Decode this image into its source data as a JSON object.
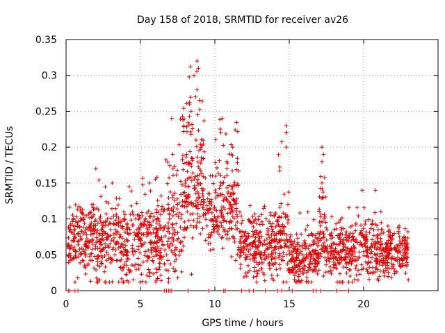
{
  "chart_data": {
    "type": "scatter",
    "title": "Day 158 of 2018, SRMTID for receiver av26",
    "xlabel": "GPS time / hours",
    "ylabel": "SRMTID / TECUs",
    "xlim": [
      0,
      25
    ],
    "ylim": [
      0,
      0.35
    ],
    "xticks": [
      {
        "value": 0,
        "label": "0"
      },
      {
        "value": 5,
        "label": "5"
      },
      {
        "value": 10,
        "label": "10"
      },
      {
        "value": 15,
        "label": "15"
      },
      {
        "value": 20,
        "label": "20"
      }
    ],
    "yticks": [
      {
        "value": 0,
        "label": "0"
      },
      {
        "value": 0.05,
        "label": "0.05"
      },
      {
        "value": 0.1,
        "label": "0.1"
      },
      {
        "value": 0.15,
        "label": "0.15"
      },
      {
        "value": 0.2,
        "label": "0.2"
      },
      {
        "value": 0.25,
        "label": "0.25"
      },
      {
        "value": 0.3,
        "label": "0.3"
      },
      {
        "value": 0.35,
        "label": "0.35"
      }
    ],
    "grid": true,
    "marker": "+",
    "color": "#e00000",
    "series": [
      {
        "name": "SRMTID av26",
        "segments": [
          {
            "x_start": 0.1,
            "x_end": 2.0,
            "base": 0.07,
            "spread": 0.03,
            "peak": 0.12,
            "count": 180
          },
          {
            "x_start": 2.0,
            "x_end": 4.5,
            "base": 0.065,
            "spread": 0.035,
            "peak": 0.17,
            "count": 230
          },
          {
            "x_start": 4.5,
            "x_end": 6.7,
            "base": 0.07,
            "spread": 0.035,
            "peak": 0.16,
            "count": 210
          },
          {
            "x_start": 6.7,
            "x_end": 7.8,
            "base": 0.09,
            "spread": 0.05,
            "peak": 0.24,
            "count": 100
          },
          {
            "x_start": 7.8,
            "x_end": 9.3,
            "base": 0.15,
            "spread": 0.06,
            "peak": 0.32,
            "count": 170
          },
          {
            "x_start": 9.3,
            "x_end": 10.0,
            "base": 0.11,
            "spread": 0.03,
            "peak": 0.16,
            "count": 50
          },
          {
            "x_start": 10.0,
            "x_end": 11.6,
            "base": 0.12,
            "spread": 0.04,
            "peak": 0.24,
            "count": 150
          },
          {
            "x_start": 11.6,
            "x_end": 14.0,
            "base": 0.06,
            "spread": 0.025,
            "peak": 0.12,
            "count": 220
          },
          {
            "x_start": 14.0,
            "x_end": 15.0,
            "base": 0.07,
            "spread": 0.035,
            "peak": 0.23,
            "count": 100
          },
          {
            "x_start": 15.0,
            "x_end": 17.0,
            "base": 0.045,
            "spread": 0.02,
            "peak": 0.11,
            "count": 200
          },
          {
            "x_start": 17.0,
            "x_end": 17.5,
            "base": 0.09,
            "spread": 0.04,
            "peak": 0.2,
            "count": 50
          },
          {
            "x_start": 17.5,
            "x_end": 20.0,
            "base": 0.055,
            "spread": 0.025,
            "peak": 0.12,
            "count": 220
          },
          {
            "x_start": 20.0,
            "x_end": 21.2,
            "base": 0.06,
            "spread": 0.03,
            "peak": 0.14,
            "count": 110
          },
          {
            "x_start": 21.2,
            "x_end": 23.0,
            "base": 0.055,
            "spread": 0.02,
            "peak": 0.09,
            "count": 180
          }
        ],
        "highlights": [
          {
            "x": 8.8,
            "y": 0.32
          },
          {
            "x": 8.9,
            "y": 0.31
          },
          {
            "x": 8.6,
            "y": 0.3
          },
          {
            "x": 8.8,
            "y": 0.28
          },
          {
            "x": 8.7,
            "y": 0.27
          },
          {
            "x": 8.3,
            "y": 0.26
          },
          {
            "x": 8.4,
            "y": 0.25
          },
          {
            "x": 7.1,
            "y": 0.24
          },
          {
            "x": 10.5,
            "y": 0.24
          },
          {
            "x": 10.4,
            "y": 0.22
          },
          {
            "x": 14.8,
            "y": 0.23
          },
          {
            "x": 14.8,
            "y": 0.22
          },
          {
            "x": 14.8,
            "y": 0.2
          },
          {
            "x": 17.2,
            "y": 0.2
          },
          {
            "x": 17.3,
            "y": 0.19
          },
          {
            "x": 17.2,
            "y": 0.18
          },
          {
            "x": 2.0,
            "y": 0.17
          },
          {
            "x": 11.2,
            "y": 0.2
          },
          {
            "x": 17.2,
            "y": 0.15
          },
          {
            "x": 20.8,
            "y": 0.14
          },
          {
            "x": 19.9,
            "y": 0.14
          },
          {
            "x": 5.6,
            "y": 0.15
          },
          {
            "x": 3.1,
            "y": 0.15
          },
          {
            "x": 23.0,
            "y": 0.015
          }
        ],
        "zero_points": [
          0.15,
          0.25,
          0.6,
          0.8,
          6.6,
          6.75,
          6.9,
          7.0,
          7.1,
          8.2,
          9.6,
          10.6,
          10.7,
          11.8,
          12.3,
          12.6,
          13.4,
          14.2,
          14.5,
          15.2,
          16.6,
          16.8,
          17.1,
          18.2,
          19.0
        ]
      }
    ]
  }
}
